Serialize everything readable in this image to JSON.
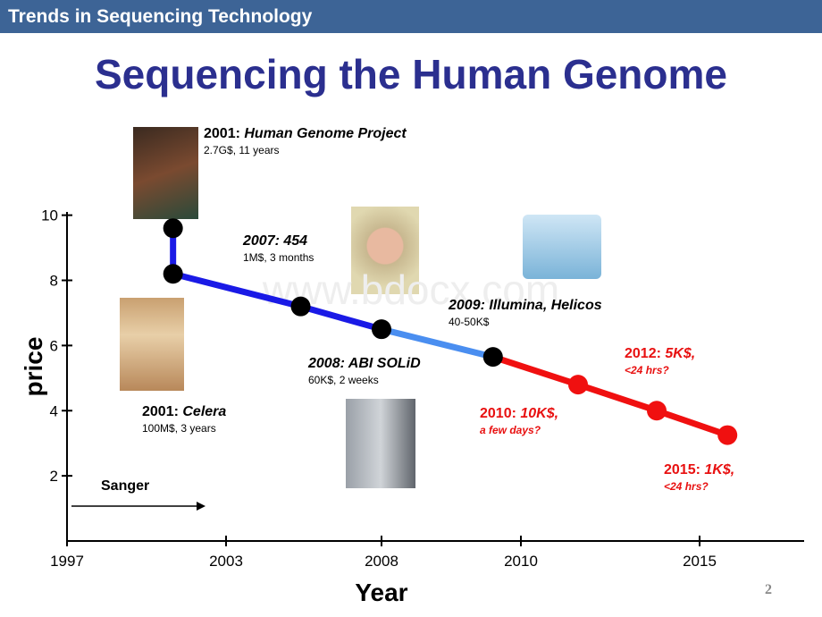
{
  "header": {
    "title": "Trends in Sequencing Technology"
  },
  "title": "Sequencing the Human Genome",
  "watermark": "www.bdocx.com",
  "chart_data": {
    "type": "line",
    "x": [
      2001,
      2001,
      2005.4,
      2008,
      2009.6,
      2011.6,
      2013.8,
      2015.8
    ],
    "values": [
      9.6,
      8.2,
      7.2,
      6.5,
      5.65,
      4.8,
      4.0,
      3.25
    ],
    "marker_color": "#000000",
    "segment_colors": [
      "#1a1ae6",
      "#1a1ae6",
      "#1a1ae6",
      "#4a8ef0",
      "#f01010",
      "#f01010",
      "#f01010"
    ],
    "xlim": [
      1997,
      2018
    ],
    "xticks": [
      1997,
      2003,
      2008,
      2010,
      2015
    ],
    "ylim": [
      0,
      10.1
    ],
    "yticks": [
      2,
      4,
      6,
      8,
      10
    ],
    "ylabel": "price",
    "xlabel": "Year",
    "annotations": [
      {
        "year": "2001:",
        "name": "Human Genome Project",
        "detail": "2.7G$, 11 years",
        "color": "#000000"
      },
      {
        "year": "2007: 454",
        "detail": "1M$, 3 months",
        "color": "#000000"
      },
      {
        "year": "2009: Illumina, Helicos",
        "detail": "40-50K$",
        "color": "#000000"
      },
      {
        "year": "2008: ABI SOLiD",
        "detail": "60K$, 2 weeks",
        "color": "#000000"
      },
      {
        "year": "2001:",
        "name": "Celera",
        "detail": "100M$, 3 years",
        "color": "#000000"
      },
      {
        "year": "2010:",
        "name": "10K$,",
        "detail": "a few days?",
        "color": "#e81010"
      },
      {
        "year": "2012:",
        "name": "5K$,",
        "detail": "<24 hrs?",
        "color": "#e81010"
      },
      {
        "year": "2015:",
        "name": "1K$,",
        "detail": "<24 hrs?",
        "color": "#e81010"
      }
    ],
    "sanger": "Sanger"
  },
  "page_number": "2"
}
